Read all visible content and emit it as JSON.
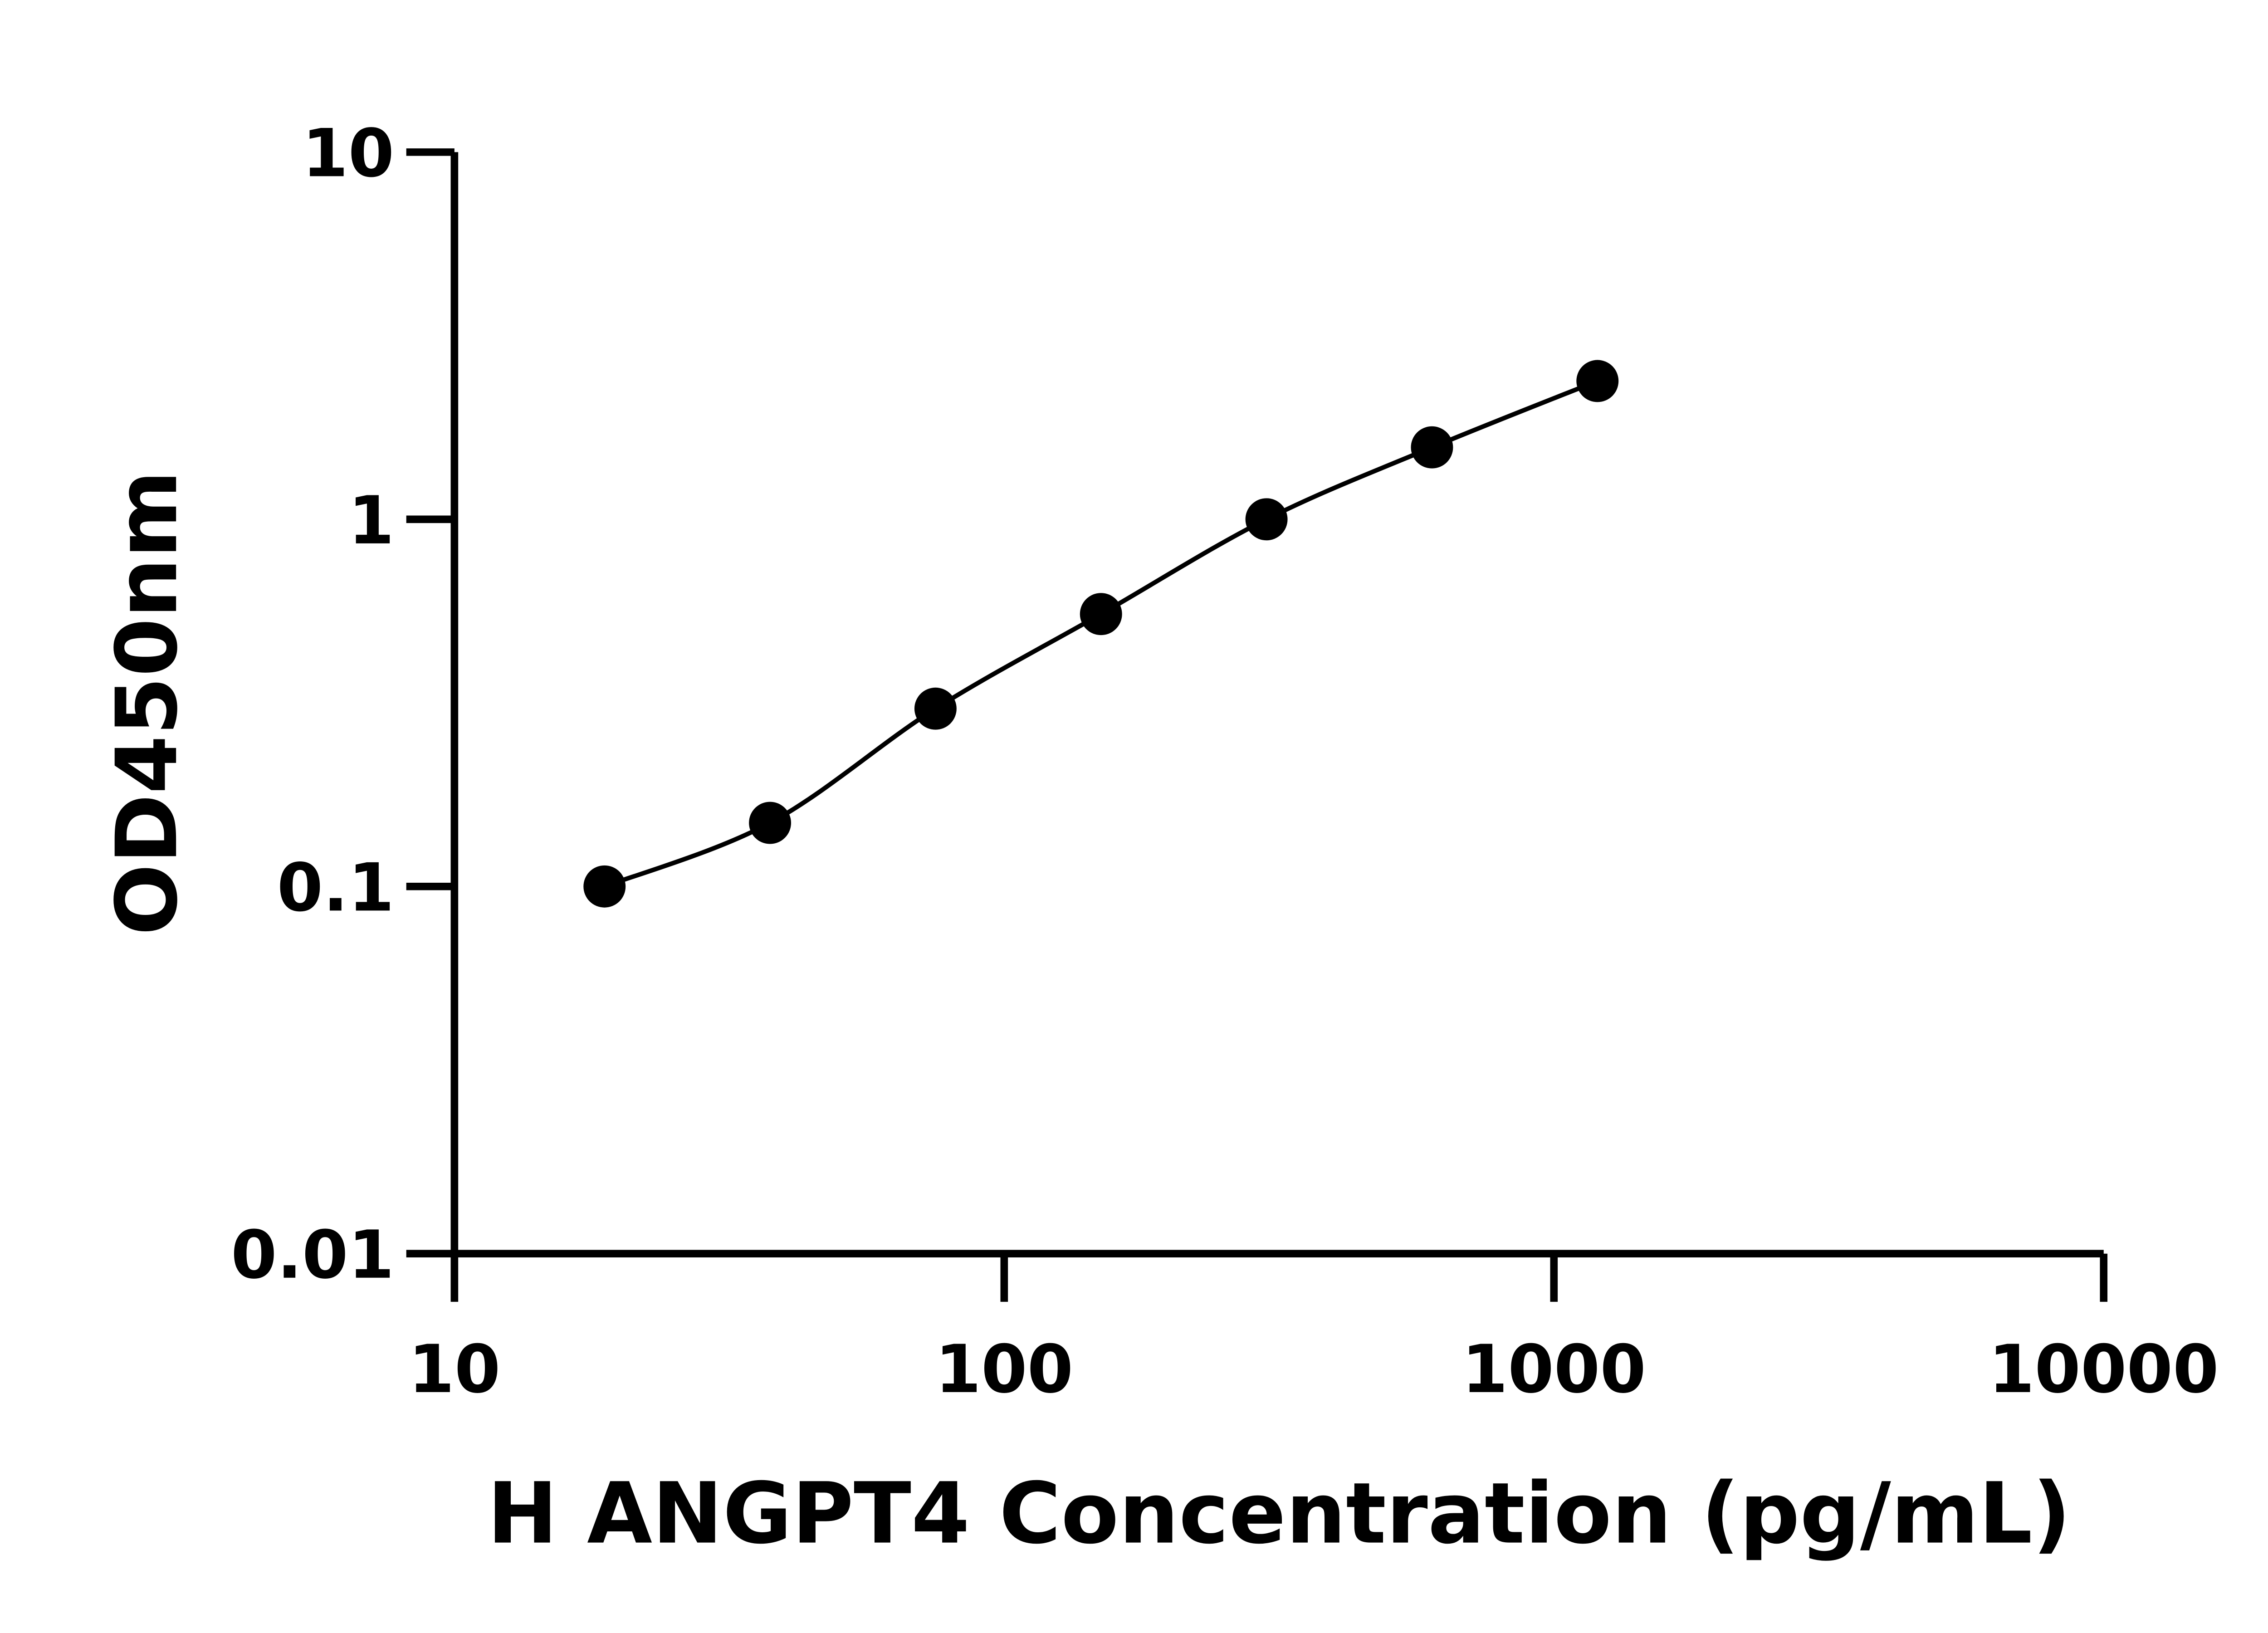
{
  "chart_data": {
    "type": "scatter",
    "title": "",
    "xlabel": "H ANGPT4 Concentration (pg/mL)",
    "ylabel": "OD450nm",
    "xscale": "log",
    "yscale": "log",
    "xlim": [
      10,
      10000
    ],
    "ylim": [
      0.01,
      10
    ],
    "xticks": [
      "10",
      "100",
      "1000",
      "10000"
    ],
    "yticks": [
      "0.01",
      "0.1",
      "1",
      "10"
    ],
    "grid": false,
    "fit_line": true,
    "color": "#000000",
    "x": [
      18.75,
      37.5,
      75,
      150,
      300,
      600,
      1200
    ],
    "y": [
      0.1,
      0.149,
      0.305,
      0.552,
      1.0,
      1.57,
      2.38
    ]
  }
}
